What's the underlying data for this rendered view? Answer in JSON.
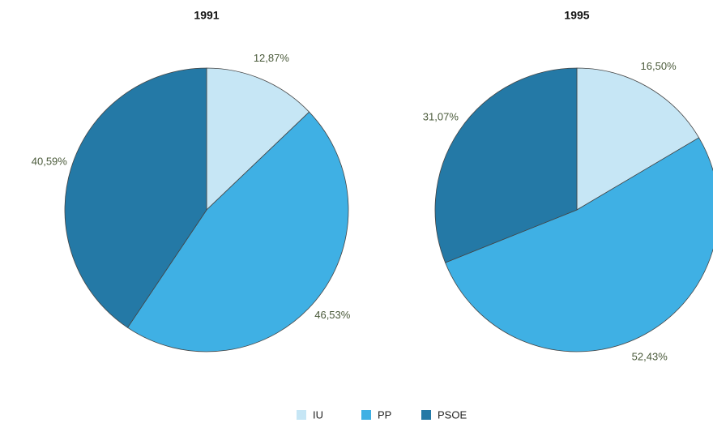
{
  "chart_data": [
    {
      "type": "pie",
      "title": "1991",
      "categories": [
        "IU",
        "PP",
        "PSOE"
      ],
      "values": [
        12.87,
        46.53,
        40.59
      ],
      "value_labels": [
        "12,87%",
        "46,53%",
        "40,59%"
      ],
      "colors": [
        "#c6e6f5",
        "#3fb0e4",
        "#2479a6"
      ],
      "legend": "bottom"
    },
    {
      "type": "pie",
      "title": "1995",
      "categories": [
        "IU",
        "PP",
        "PSOE"
      ],
      "values": [
        16.5,
        52.43,
        31.07
      ],
      "value_labels": [
        "16,50%",
        "52,43%",
        "31,07%"
      ],
      "colors": [
        "#c6e6f5",
        "#3fb0e4",
        "#2479a6"
      ]
    }
  ]
}
